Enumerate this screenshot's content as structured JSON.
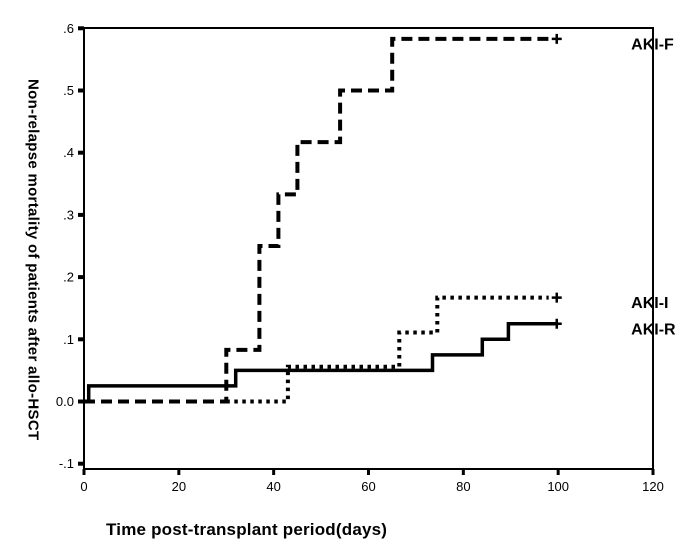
{
  "colors": {
    "ink": "#000000",
    "background": "#ffffff"
  },
  "chart_data": {
    "type": "line",
    "subtype": "kaplan-meier-step",
    "title": "",
    "xlabel": "Time post-transplant period(days)",
    "ylabel": "Non-relapse mortality of patients after allo-HSCT",
    "xlim": [
      0,
      120
    ],
    "ylim": [
      -0.1,
      0.6
    ],
    "grid": "off",
    "legend_position": "labels-at-curve-ends",
    "xticks": [
      {
        "value": 0,
        "label": "0"
      },
      {
        "value": 20,
        "label": "20"
      },
      {
        "value": 40,
        "label": "40"
      },
      {
        "value": 60,
        "label": "60"
      },
      {
        "value": 80,
        "label": "80"
      },
      {
        "value": 100,
        "label": "100"
      },
      {
        "value": 120,
        "label": "120"
      }
    ],
    "yticks": [
      {
        "value": 0.6,
        "label": ".6"
      },
      {
        "value": 0.5,
        "label": ".5"
      },
      {
        "value": 0.4,
        "label": ".4"
      },
      {
        "value": 0.3,
        "label": ".3"
      },
      {
        "value": 0.2,
        "label": ".2"
      },
      {
        "value": 0.1,
        "label": ".1"
      },
      {
        "value": 0.0,
        "label": "0.0"
      },
      {
        "value": -0.1,
        "label": "-.1"
      }
    ],
    "series": [
      {
        "name": "AKI-F",
        "style": "dashed",
        "points": [
          [
            0,
            0
          ],
          [
            30,
            0
          ],
          [
            30,
            0.083
          ],
          [
            37,
            0.083
          ],
          [
            37,
            0.25
          ],
          [
            41,
            0.25
          ],
          [
            41,
            0.333
          ],
          [
            45,
            0.333
          ],
          [
            45,
            0.417
          ],
          [
            54,
            0.417
          ],
          [
            54,
            0.5
          ],
          [
            65,
            0.5
          ],
          [
            65,
            0.583
          ],
          [
            98,
            0.583
          ]
        ],
        "censor_day": 99.7,
        "censor_value": 0.583
      },
      {
        "name": "AKI-I",
        "style": "dotted",
        "points": [
          [
            30,
            0
          ],
          [
            43,
            0
          ],
          [
            43,
            0.056
          ],
          [
            66.5,
            0.056
          ],
          [
            66.5,
            0.111
          ],
          [
            74.5,
            0.111
          ],
          [
            74.5,
            0.167
          ],
          [
            98,
            0.167
          ]
        ],
        "censor_day": 99.7,
        "censor_value": 0.167
      },
      {
        "name": "AKI-R",
        "style": "solid",
        "points": [
          [
            1,
            0
          ],
          [
            1,
            0.025
          ],
          [
            32,
            0.025
          ],
          [
            32,
            0.05
          ],
          [
            73.5,
            0.05
          ],
          [
            73.5,
            0.075
          ],
          [
            84,
            0.075
          ],
          [
            84,
            0.1
          ],
          [
            89.5,
            0.1
          ],
          [
            89.5,
            0.125
          ],
          [
            100,
            0.125
          ]
        ],
        "censor_day": 99.7,
        "censor_value": 0.125
      }
    ]
  }
}
